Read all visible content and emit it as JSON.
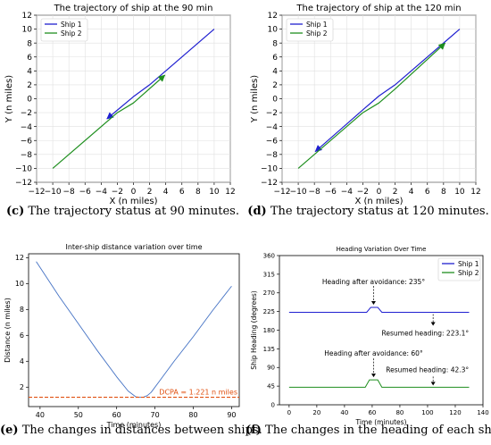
{
  "chart_data": [
    {
      "id": "c",
      "type": "line",
      "title": "The trajectory of ship at the 90 min",
      "xlabel": "X (n miles)",
      "ylabel": "Y (n miles)",
      "xlim": [
        -12,
        12
      ],
      "ylim": [
        -12,
        12
      ],
      "x_ticks": [
        -12,
        -10,
        -8,
        -6,
        -4,
        -2,
        0,
        2,
        4,
        6,
        8,
        10,
        12
      ],
      "y_ticks": [
        -12,
        -10,
        -8,
        -6,
        -4,
        -2,
        0,
        2,
        4,
        6,
        8,
        10,
        12
      ],
      "legend": "top-left",
      "series": [
        {
          "name": "Ship 1",
          "color": "#1f1fd0",
          "x": [
            10,
            2,
            0,
            -3.3
          ],
          "y": [
            10,
            2,
            0.3,
            -2.9
          ],
          "arrow": "end"
        },
        {
          "name": "Ship 2",
          "color": "#1f8f1f",
          "x": [
            -10,
            -2,
            0,
            3.9
          ],
          "y": [
            -10,
            -2,
            -0.6,
            3.4
          ],
          "arrow": "end"
        }
      ],
      "caption_label": "(c)",
      "caption_text": "The trajectory status at 90 minutes."
    },
    {
      "id": "d",
      "type": "line",
      "title": "The trajectory of ship at the 120 min",
      "xlabel": "X (n miles)",
      "ylabel": "Y (n miles)",
      "xlim": [
        -12,
        12
      ],
      "ylim": [
        -12,
        12
      ],
      "x_ticks": [
        -12,
        -10,
        -8,
        -6,
        -4,
        -2,
        0,
        2,
        4,
        6,
        8,
        10,
        12
      ],
      "y_ticks": [
        -12,
        -10,
        -8,
        -6,
        -4,
        -2,
        0,
        2,
        4,
        6,
        8,
        10,
        12
      ],
      "legend": "top-left",
      "series": [
        {
          "name": "Ship 1",
          "color": "#1f1fd0",
          "x": [
            10,
            2,
            0,
            -2,
            -7.9
          ],
          "y": [
            10,
            2,
            0.4,
            -1.6,
            -7.6
          ],
          "arrow": "end"
        },
        {
          "name": "Ship 2",
          "color": "#1f8f1f",
          "x": [
            -10,
            -2,
            0,
            2,
            8.2
          ],
          "y": [
            -10,
            -2,
            -0.6,
            1.4,
            8.0
          ],
          "arrow": "end"
        }
      ],
      "caption_label": "(d)",
      "caption_text": "The trajectory status at 120 minutes."
    },
    {
      "id": "e",
      "type": "line",
      "title": "Inter-ship distance variation over time",
      "xlabel": "Time (minutes)",
      "ylabel": "Distance (n miles)",
      "xlim": [
        37,
        92
      ],
      "ylim": [
        0.5,
        12.3
      ],
      "x_ticks": [
        40,
        50,
        60,
        70,
        80,
        90
      ],
      "y_ticks": [
        2,
        4,
        6,
        8,
        10,
        12
      ],
      "series": [
        {
          "name": "",
          "color": "#4472c4",
          "x": [
            39,
            45,
            50,
            55,
            60,
            63,
            65,
            66,
            67,
            68,
            69,
            71,
            75,
            80,
            85,
            90
          ],
          "y": [
            11.7,
            9.0,
            6.9,
            4.8,
            2.8,
            1.7,
            1.25,
            1.22,
            1.23,
            1.35,
            1.6,
            2.4,
            4.0,
            5.9,
            7.9,
            9.8
          ]
        }
      ],
      "dcpa_value": 1.221,
      "dcpa_label": "DCPA = 1.221 n miles",
      "dcpa_color": "#e05010",
      "caption_label": "(e)",
      "caption_text": "The changes in distances between ships."
    },
    {
      "id": "f",
      "type": "line",
      "title": "Heading Variation Over Time",
      "xlabel": "Time (minutes)",
      "ylabel": "Ship Heading (degrees)",
      "xlim": [
        -7,
        140
      ],
      "ylim": [
        0,
        360
      ],
      "x_ticks": [
        0,
        20,
        40,
        60,
        80,
        100,
        120,
        140
      ],
      "y_ticks": [
        0,
        45,
        90,
        135,
        180,
        225,
        270,
        315,
        360
      ],
      "legend": "top-right",
      "series": [
        {
          "name": "Ship 1",
          "color": "#1f1fd0",
          "x": [
            0,
            56,
            59,
            64,
            67,
            130
          ],
          "y": [
            223.1,
            223.1,
            235,
            235,
            223.1,
            223.1
          ]
        },
        {
          "name": "Ship 2",
          "color": "#1f8f1f",
          "x": [
            0,
            55,
            58,
            64,
            67,
            130
          ],
          "y": [
            42.3,
            42.3,
            60,
            60,
            42.3,
            42.3
          ]
        }
      ],
      "annotations": [
        {
          "text": "Heading after avoidance: 235°",
          "x": 61,
          "y": 235
        },
        {
          "text": "Resumed heading: 223.1°",
          "x": 104,
          "y": 223.1
        },
        {
          "text": "Heading after avoidance: 60°",
          "x": 61,
          "y": 60
        },
        {
          "text": "Resumed heading: 42.3°",
          "x": 104,
          "y": 42.3
        }
      ],
      "caption_label": "(f)",
      "caption_text": "The changes in the heading of each ship."
    }
  ]
}
